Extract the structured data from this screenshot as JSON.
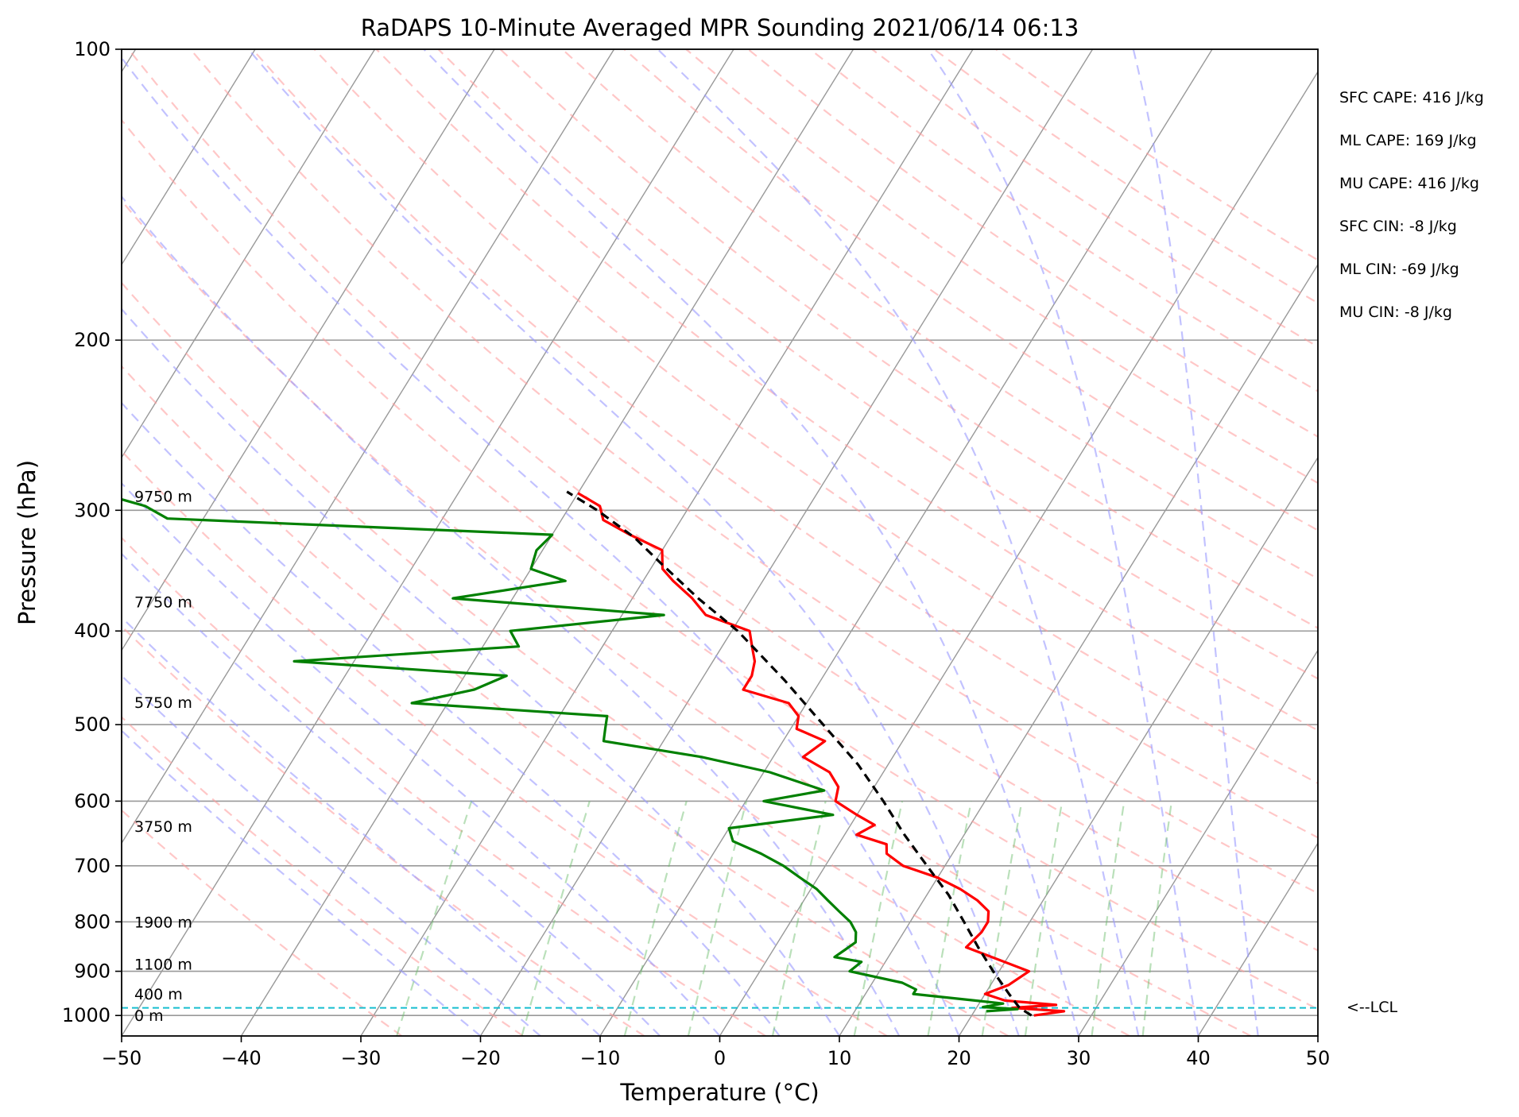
{
  "chart_data": {
    "type": "line",
    "title": "RaDAPS 10-Minute Averaged MPR Sounding 2021/06/14 06:13",
    "xlabel": "Temperature (°C)",
    "ylabel": "Pressure (hPa)",
    "xlim": [
      -50,
      50
    ],
    "ylim": [
      1050,
      100
    ],
    "y_scale": "log",
    "skew": "skew-T",
    "grid": true,
    "x_ticks": [
      "−50",
      "−40",
      "−30",
      "−20",
      "−10",
      "0",
      "10",
      "20",
      "30",
      "40",
      "50"
    ],
    "y_ticks": [
      {
        "p": 100,
        "label": "100"
      },
      {
        "p": 200,
        "label": "200"
      },
      {
        "p": 300,
        "label": "300"
      },
      {
        "p": 400,
        "label": "400"
      },
      {
        "p": 500,
        "label": "500"
      },
      {
        "p": 600,
        "label": "600"
      },
      {
        "p": 700,
        "label": "700"
      },
      {
        "p": 800,
        "label": "800"
      },
      {
        "p": 900,
        "label": "900"
      },
      {
        "p": 1000,
        "label": "1000"
      }
    ],
    "height_labels": [
      {
        "p": 290,
        "label": "9750 m"
      },
      {
        "p": 373,
        "label": "7750 m"
      },
      {
        "p": 474,
        "label": "5750 m"
      },
      {
        "p": 637,
        "label": "3750 m"
      },
      {
        "p": 800,
        "label": "1900 m"
      },
      {
        "p": 885,
        "label": "1100 m"
      },
      {
        "p": 950,
        "label": "400 m"
      },
      {
        "p": 1000,
        "label": "0 m"
      }
    ],
    "lcl": {
      "p": 982,
      "label": "<--LCL",
      "color": "#17becf"
    },
    "stats": [
      "SFC CAPE: 416 J/kg",
      "ML CAPE: 169 J/kg",
      "MU CAPE: 416 J/kg",
      "SFC CIN: -8 J/kg",
      "ML CIN: -69 J/kg",
      "MU CIN: -8 J/kg"
    ],
    "colors": {
      "temperature": "#ff0000",
      "dewpoint": "#008000",
      "parcel": "#000000",
      "dry_adiabats": "#ff9999",
      "moist_adiabats": "#9999ff",
      "mixing_ratio": "#66bb66",
      "isotherms": "#999999"
    },
    "series": [
      {
        "key": "temperature",
        "points": [
          [
            1000,
            25.2
          ],
          [
            990,
            27.5
          ],
          [
            982,
            23.0
          ],
          [
            975,
            26.5
          ],
          [
            965,
            22.0
          ],
          [
            950,
            20.0
          ],
          [
            930,
            21.5
          ],
          [
            900,
            22.5
          ],
          [
            850,
            16.0
          ],
          [
            820,
            16.5
          ],
          [
            800,
            16.5
          ],
          [
            780,
            16.0
          ],
          [
            760,
            14.5
          ],
          [
            740,
            12.5
          ],
          [
            720,
            10.0
          ],
          [
            700,
            6.5
          ],
          [
            680,
            4.5
          ],
          [
            665,
            4.0
          ],
          [
            650,
            1.0
          ],
          [
            635,
            2.0
          ],
          [
            620,
            0.0
          ],
          [
            600,
            -2.5
          ],
          [
            580,
            -3.0
          ],
          [
            560,
            -4.5
          ],
          [
            540,
            -7.5
          ],
          [
            520,
            -6.5
          ],
          [
            505,
            -9.5
          ],
          [
            490,
            -10.0
          ],
          [
            475,
            -11.5
          ],
          [
            460,
            -16.0
          ],
          [
            445,
            -16.0
          ],
          [
            430,
            -16.5
          ],
          [
            415,
            -17.5
          ],
          [
            400,
            -18.5
          ],
          [
            385,
            -23.0
          ],
          [
            370,
            -25.0
          ],
          [
            355,
            -27.5
          ],
          [
            345,
            -29.0
          ],
          [
            330,
            -30.0
          ],
          [
            318,
            -33.5
          ],
          [
            307,
            -36.5
          ],
          [
            297,
            -37.5
          ],
          [
            288,
            -40.0
          ]
        ]
      },
      {
        "key": "dewpoint",
        "points": [
          [
            990,
            21.0
          ],
          [
            985,
            23.5
          ],
          [
            980,
            20.5
          ],
          [
            972,
            22.0
          ],
          [
            965,
            19.5
          ],
          [
            950,
            14.0
          ],
          [
            940,
            14.0
          ],
          [
            925,
            12.5
          ],
          [
            900,
            7.5
          ],
          [
            880,
            8.0
          ],
          [
            870,
            5.5
          ],
          [
            855,
            6.0
          ],
          [
            840,
            6.5
          ],
          [
            820,
            6.0
          ],
          [
            800,
            5.0
          ],
          [
            780,
            3.5
          ],
          [
            760,
            2.0
          ],
          [
            740,
            0.5
          ],
          [
            720,
            -1.5
          ],
          [
            700,
            -3.5
          ],
          [
            680,
            -6.0
          ],
          [
            660,
            -9.0
          ],
          [
            640,
            -10.0
          ],
          [
            620,
            -2.0
          ],
          [
            600,
            -8.5
          ],
          [
            585,
            -4.0
          ],
          [
            560,
            -9.5
          ],
          [
            540,
            -16.0
          ],
          [
            520,
            -25.0
          ],
          [
            505,
            -25.5
          ],
          [
            490,
            -26.0
          ],
          [
            475,
            -43.0
          ],
          [
            460,
            -38.5
          ],
          [
            445,
            -36.5
          ],
          [
            430,
            -55.0
          ],
          [
            415,
            -37.0
          ],
          [
            400,
            -38.5
          ],
          [
            385,
            -26.5
          ],
          [
            370,
            -45.0
          ],
          [
            355,
            -36.5
          ],
          [
            345,
            -40.0
          ],
          [
            330,
            -40.5
          ],
          [
            318,
            -40.0
          ],
          [
            306,
            -73.0
          ],
          [
            297,
            -75.5
          ],
          [
            288,
            -80.0
          ]
        ]
      },
      {
        "key": "parcel",
        "points": [
          [
            1000,
            25.0
          ],
          [
            982,
            23.6
          ],
          [
            950,
            22.0
          ],
          [
            900,
            19.5
          ],
          [
            850,
            17.0
          ],
          [
            800,
            14.5
          ],
          [
            750,
            11.8
          ],
          [
            700,
            8.5
          ],
          [
            650,
            5.0
          ],
          [
            600,
            1.5
          ],
          [
            550,
            -2.5
          ],
          [
            500,
            -7.5
          ],
          [
            450,
            -13.0
          ],
          [
            400,
            -19.5
          ],
          [
            370,
            -24.5
          ],
          [
            340,
            -29.5
          ],
          [
            320,
            -33.0
          ],
          [
            300,
            -37.5
          ],
          [
            287,
            -41.0
          ]
        ]
      }
    ]
  }
}
